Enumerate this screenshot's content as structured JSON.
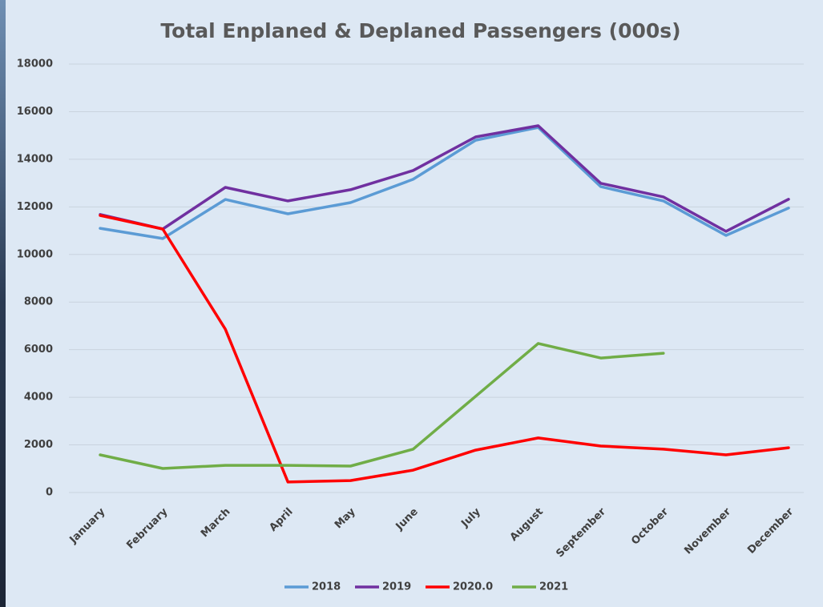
{
  "chart_data": {
    "type": "line",
    "title": "Total Enplaned & Deplaned Passengers (000s)",
    "categories": [
      "January",
      "February",
      "March",
      "April",
      "May",
      "June",
      "July",
      "August",
      "September",
      "October",
      "November",
      "December"
    ],
    "series": [
      {
        "name": "2018",
        "color": "#5b9bd5",
        "values": [
          11100,
          10670,
          12310,
          11710,
          12180,
          13160,
          14800,
          15340,
          12850,
          12250,
          10800,
          11950
        ]
      },
      {
        "name": "2019",
        "color": "#7030a0",
        "values": [
          11680,
          11070,
          12820,
          12250,
          12720,
          13530,
          14940,
          15410,
          12990,
          12420,
          10970,
          12320
        ]
      },
      {
        "name": "2020.0",
        "color": "#ff0000",
        "values": [
          11640,
          11070,
          6860,
          440,
          500,
          940,
          1780,
          2290,
          1950,
          1820,
          1580,
          1880
        ]
      },
      {
        "name": "2021",
        "color": "#70ad47",
        "values": [
          1580,
          1010,
          1140,
          1140,
          1110,
          1820,
          4040,
          6260,
          5650,
          5850,
          null,
          null
        ]
      }
    ],
    "ylim": [
      0,
      18000
    ],
    "yticks": [
      0,
      2000,
      4000,
      6000,
      8000,
      10000,
      12000,
      14000,
      16000,
      18000
    ],
    "grid": true
  }
}
